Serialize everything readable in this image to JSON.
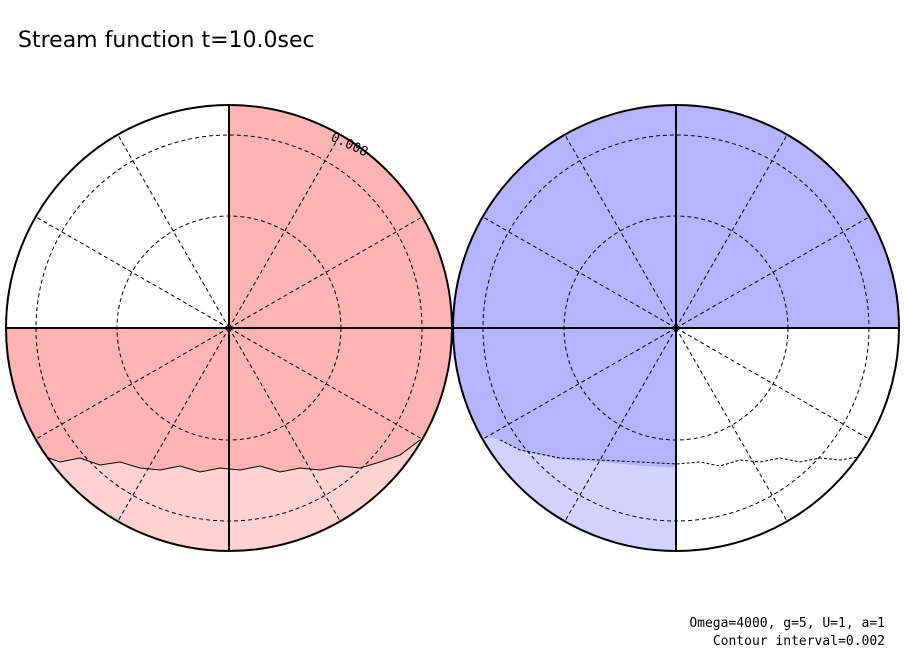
{
  "title": "Stream function t=10.0sec",
  "contour_label": "0.008",
  "notes": [
    "Omega=4000, g=5, U=1, a=1",
    "Contour interval=0.002"
  ]
}
